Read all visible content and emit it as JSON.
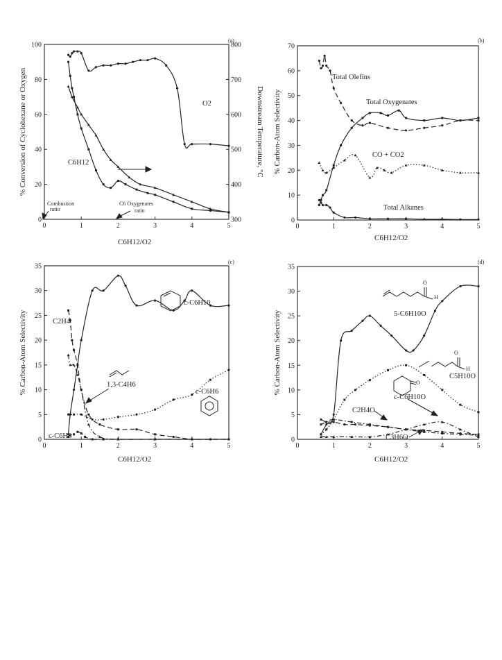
{
  "chart_data": [
    {
      "panel": "(a)",
      "type": "scatter",
      "xlabel": "C6H12/O2",
      "ylabel": "% Conversion of Cyclohexane or Oxygen",
      "y2label": "Downstream Temperature, °C",
      "xlim": [
        0,
        5
      ],
      "ylim": [
        0,
        100
      ],
      "y2lim": [
        300,
        800
      ],
      "xticks": [
        "0",
        "1",
        "2",
        "3",
        "4",
        "5"
      ],
      "yticks": [
        "0",
        "20",
        "40",
        "60",
        "80",
        "100"
      ],
      "y2ticks": [
        "300",
        "400",
        "500",
        "600",
        "700",
        "800"
      ],
      "annotations": [
        "Combustion ratio",
        "C6 Oxygenates ratio"
      ],
      "series": [
        {
          "name": "O2",
          "axis": "left",
          "style": "solid",
          "x": [
            0.65,
            0.7,
            0.75,
            0.8,
            0.9,
            1.0,
            1.2,
            1.4,
            1.6,
            1.8,
            2.0,
            2.2,
            2.4,
            2.6,
            2.8,
            3.0,
            3.3,
            3.6,
            3.8,
            4.0,
            4.5,
            5.0
          ],
          "y": [
            94,
            93,
            95,
            96,
            96,
            95,
            85,
            87,
            88,
            88,
            89,
            89,
            90,
            91,
            91,
            92,
            88,
            75,
            43,
            43,
            43,
            42
          ]
        },
        {
          "name": "C6H12",
          "axis": "left",
          "style": "solid",
          "x": [
            0.65,
            0.7,
            0.75,
            0.8,
            0.9,
            1.0,
            1.2,
            1.4,
            1.6,
            1.8,
            2.0,
            2.2,
            2.5,
            2.8,
            3.0,
            3.5,
            4.0,
            4.5,
            5.0
          ],
          "y": [
            90,
            82,
            75,
            70,
            60,
            52,
            40,
            28,
            20,
            18,
            22,
            20,
            17,
            15,
            14,
            10,
            6,
            5,
            4
          ]
        },
        {
          "name": "Downstream Temperature",
          "axis": "right",
          "style": "solid",
          "x": [
            0.65,
            0.75,
            0.9,
            1.0,
            1.2,
            1.4,
            1.6,
            1.8,
            2.0,
            2.3,
            2.6,
            3.0,
            3.5,
            4.0,
            4.5,
            5.0
          ],
          "y": [
            680,
            650,
            620,
            600,
            570,
            540,
            500,
            470,
            450,
            420,
            400,
            390,
            370,
            350,
            330,
            320
          ]
        }
      ]
    },
    {
      "panel": "(b)",
      "type": "scatter",
      "xlabel": "C6H12/O2",
      "ylabel": "% Carbon-Atom Selectivity",
      "xlim": [
        0,
        5
      ],
      "ylim": [
        0,
        70
      ],
      "xticks": [
        "0",
        "1",
        "2",
        "3",
        "4",
        "5"
      ],
      "yticks": [
        "0",
        "10",
        "20",
        "30",
        "40",
        "50",
        "60",
        "70"
      ],
      "series": [
        {
          "name": "Total Olefins",
          "style": "dashed",
          "x": [
            0.6,
            0.65,
            0.7,
            0.75,
            0.8,
            0.9,
            1.0,
            1.2,
            1.5,
            1.8,
            2.0,
            2.5,
            3.0,
            3.5,
            4.0,
            4.5,
            5.0
          ],
          "y": [
            64,
            61,
            62,
            66,
            62,
            60,
            53,
            47,
            40,
            38,
            39,
            37,
            36,
            37,
            38,
            40,
            40
          ]
        },
        {
          "name": "Total Oxygenates",
          "style": "solid",
          "x": [
            0.6,
            0.65,
            0.7,
            0.8,
            1.0,
            1.2,
            1.5,
            1.8,
            2.0,
            2.3,
            2.5,
            2.8,
            3.0,
            3.5,
            4.0,
            4.5,
            5.0
          ],
          "y": [
            6,
            8,
            10,
            12,
            22,
            30,
            37,
            41,
            43,
            43,
            42,
            44,
            41,
            40,
            41,
            40,
            41
          ]
        },
        {
          "name": "CO + CO2",
          "style": "dotted",
          "x": [
            0.6,
            0.7,
            0.8,
            1.0,
            1.3,
            1.6,
            2.0,
            2.2,
            2.4,
            2.6,
            3.0,
            3.5,
            4.0,
            4.5,
            5.0
          ],
          "y": [
            23,
            20,
            19,
            21,
            24,
            26,
            17,
            21,
            20,
            19,
            22,
            22,
            20,
            19,
            19
          ]
        },
        {
          "name": "Total Alkanes",
          "style": "solid",
          "x": [
            0.6,
            0.65,
            0.7,
            0.8,
            0.9,
            1.0,
            1.3,
            1.6,
            2.0,
            2.5,
            3.0,
            3.5,
            4.0,
            4.5,
            5.0
          ],
          "y": [
            8,
            7,
            6,
            6,
            5,
            3,
            1,
            1,
            0.5,
            0.5,
            0.5,
            0.3,
            0.3,
            0.2,
            0.2
          ]
        }
      ],
      "annotations": [
        "Total Olefins",
        "Total Oxygenates",
        "CO + CO2",
        "Total Alkanes"
      ]
    },
    {
      "panel": "(c)",
      "type": "scatter",
      "xlabel": "C6H12/O2",
      "ylabel": "% Carbon-Atom Selectivity",
      "xlim": [
        0,
        5
      ],
      "ylim": [
        0,
        35
      ],
      "xticks": [
        "0",
        "1",
        "2",
        "3",
        "4",
        "5"
      ],
      "yticks": [
        "0",
        "5",
        "10",
        "15",
        "20",
        "25",
        "30",
        "35"
      ],
      "series": [
        {
          "name": "c-C6H10",
          "style": "solid",
          "x": [
            0.65,
            0.7,
            0.8,
            0.9,
            1.0,
            1.3,
            1.6,
            2.0,
            2.2,
            2.5,
            3.0,
            3.5,
            3.8,
            4.0,
            4.5,
            5.0
          ],
          "y": [
            1,
            5,
            10,
            15,
            20,
            30,
            30,
            33,
            31,
            27,
            28,
            26,
            28,
            30,
            27,
            27
          ]
        },
        {
          "name": "C2H4",
          "style": "dashed",
          "x": [
            0.65,
            0.7,
            0.75,
            0.8,
            0.9,
            1.0,
            1.2,
            1.5,
            2.0,
            2.5,
            3.0,
            3.5,
            4.0,
            4.5,
            5.0
          ],
          "y": [
            26,
            24,
            20,
            18,
            15,
            10,
            5,
            3,
            2,
            2,
            1,
            0.5,
            0,
            0,
            0
          ]
        },
        {
          "name": "1,3-C4H6",
          "style": "dash-dot",
          "x": [
            0.65,
            0.7,
            0.8,
            0.9,
            1.0,
            1.2,
            1.5,
            2.0,
            3.0,
            4.0,
            5.0
          ],
          "y": [
            17,
            15,
            15,
            13,
            10,
            3,
            0.5,
            0,
            0,
            0,
            0
          ]
        },
        {
          "name": "c-C6H6",
          "style": "dotted",
          "x": [
            0.65,
            0.8,
            1.0,
            1.3,
            1.6,
            2.0,
            2.5,
            3.0,
            3.5,
            4.0,
            4.5,
            5.0
          ],
          "y": [
            5,
            5,
            5,
            4,
            4,
            4.5,
            5,
            6,
            8,
            9,
            12,
            14
          ]
        },
        {
          "name": "c-C6H8",
          "style": "dash-dot",
          "x": [
            0.65,
            0.7,
            0.8,
            0.9,
            1.0,
            1.1,
            1.3,
            1.6,
            2.0,
            3.0,
            4.0,
            5.0
          ],
          "y": [
            0.5,
            0.8,
            1,
            1.5,
            1.2,
            0.5,
            0,
            0,
            0,
            0,
            0,
            0
          ]
        }
      ],
      "annotations": [
        "c-C6H10",
        "C2H4",
        "1,3-C4H6",
        "c-C6H6",
        "c-C6H8"
      ]
    },
    {
      "panel": "(d)",
      "type": "scatter",
      "xlabel": "C6H12/O2",
      "ylabel": "% Carbon-Atom Selectivity",
      "xlim": [
        0,
        5
      ],
      "ylim": [
        0,
        35
      ],
      "xticks": [
        "0",
        "1",
        "2",
        "3",
        "4",
        "5"
      ],
      "yticks": [
        "0",
        "5",
        "10",
        "15",
        "20",
        "25",
        "30",
        "35"
      ],
      "series": [
        {
          "name": "5-C6H10O",
          "style": "solid",
          "x": [
            0.65,
            0.8,
            1.0,
            1.2,
            1.5,
            1.8,
            2.0,
            2.3,
            2.6,
            3.0,
            3.2,
            3.5,
            3.8,
            4.0,
            4.5,
            5.0
          ],
          "y": [
            1,
            3,
            5,
            20,
            22,
            24,
            25,
            23,
            21,
            18,
            18,
            21,
            26,
            28,
            31,
            31
          ]
        },
        {
          "name": "C5H10O",
          "style": "dotted",
          "x": [
            0.65,
            0.8,
            1.0,
            1.3,
            1.6,
            2.0,
            2.5,
            3.0,
            3.5,
            4.0,
            4.5,
            5.0
          ],
          "y": [
            1,
            2,
            4,
            8,
            10,
            12,
            14,
            15,
            13,
            10,
            7,
            5.5
          ]
        },
        {
          "name": "c-C6H10O",
          "style": "dash-dot",
          "x": [
            0.65,
            0.8,
            1.0,
            1.5,
            2.0,
            2.5,
            3.0,
            3.5,
            4.0,
            4.5,
            5.0
          ],
          "y": [
            0.5,
            0.5,
            0.5,
            0.5,
            0.5,
            1,
            2,
            3,
            3.5,
            2,
            0.5
          ]
        },
        {
          "name": "C2H4O",
          "style": "dashed",
          "x": [
            0.65,
            0.8,
            1.0,
            1.3,
            1.6,
            2.0,
            2.5,
            3.0,
            3.5,
            4.0,
            4.5,
            5.0
          ],
          "y": [
            4,
            3.5,
            3.5,
            3,
            3,
            2.8,
            2.5,
            2,
            1.8,
            1.5,
            1.2,
            1
          ]
        },
        {
          "name": "C3H6O",
          "style": "dash-dot",
          "x": [
            0.65,
            0.8,
            1.0,
            1.5,
            2.0,
            2.5,
            3.0,
            3.5,
            4.0,
            4.5,
            5.0
          ],
          "y": [
            3,
            3.5,
            4,
            3.5,
            3,
            2.5,
            2,
            1.5,
            1.2,
            1,
            0.8
          ]
        }
      ],
      "annotations": [
        "5-C6H10O",
        "C5H10O",
        "c-C6H10O",
        "C2H4O",
        "C3H6O"
      ]
    }
  ],
  "panels": {
    "a": {
      "tag": "(a)",
      "xlabel": "C6H12/O2",
      "ylabel": "% Conversion of Cyclohexane or Oxygen",
      "y2label": "Downstream Temperature, °C",
      "combustion": "Combustion",
      "combustion2": "ratio",
      "oxy": "C6 Oxygenates",
      "oxy2": "ratio",
      "o2": "O2",
      "c6h12": "C6H12"
    },
    "b": {
      "tag": "(b)",
      "xlabel": "C6H12/O2",
      "ylabel": "% Carbon-Atom Selectivity",
      "olefins": "Total Olefins",
      "oxygenates": "Total Oxygenates",
      "co": "CO + CO2",
      "alkanes": "Total Alkanes"
    },
    "c": {
      "tag": "(c)",
      "xlabel": "C6H12/O2",
      "ylabel": "% Carbon-Atom Selectivity",
      "c6h10": "c-C6H10",
      "c2h4": "C2H4",
      "c4h6": "1,3-C4H6",
      "c6h6": "c-C6H6",
      "c6h8": "c-C6H8"
    },
    "d": {
      "tag": "(d)",
      "xlabel": "C6H12/O2",
      "ylabel": "% Carbon-Atom Selectivity",
      "c6h10o": "5-C6H10O",
      "c5h10o": "C5H10O",
      "cc6h10o": "c-C6H10O",
      "c2h4o": "C2H4O",
      "c3h6o": "C3H6O",
      "h": "H",
      "o": "O"
    }
  }
}
